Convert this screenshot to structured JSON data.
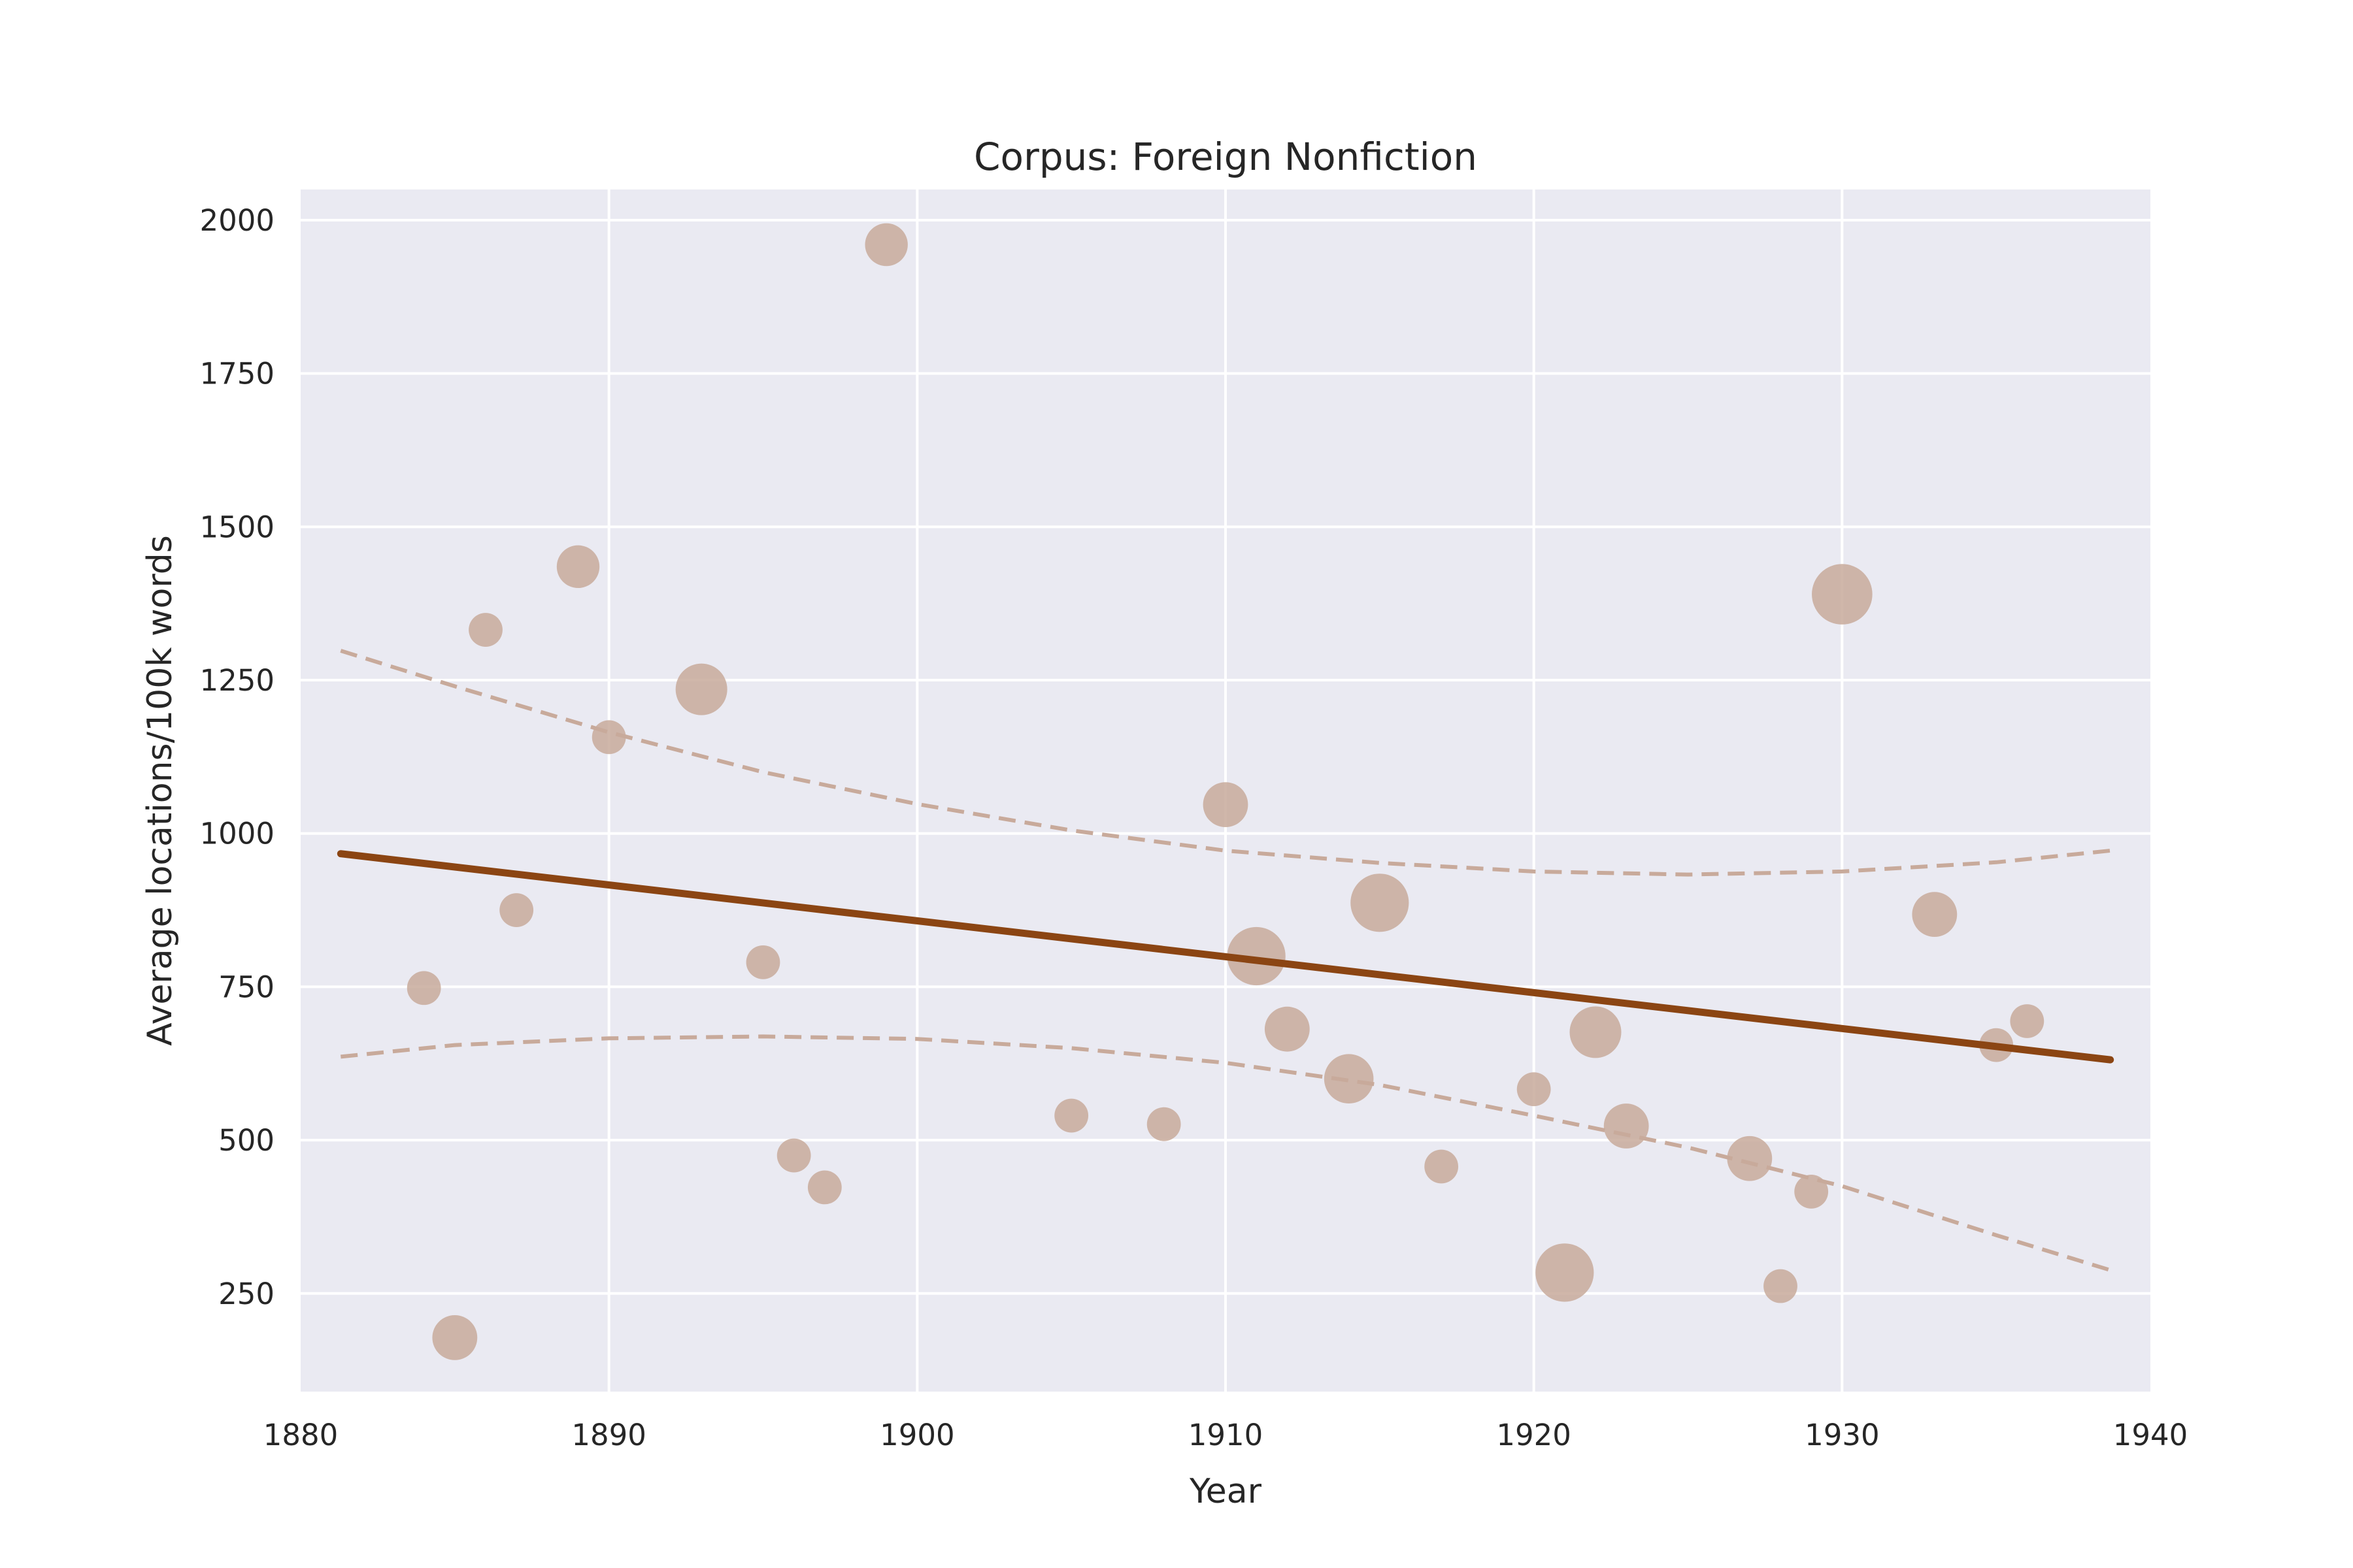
{
  "chart_data": {
    "type": "scatter",
    "title": "Corpus: Foreign Nonfiction",
    "xlabel": "Year",
    "ylabel": "Average locations/100k words",
    "xlim": [
      1880,
      1940
    ],
    "ylim": [
      90,
      2050
    ],
    "xticks": [
      1880,
      1890,
      1900,
      1910,
      1920,
      1930,
      1940
    ],
    "yticks": [
      250,
      500,
      750,
      1000,
      1250,
      1500,
      1750,
      2000
    ],
    "grid": true,
    "legend": "none",
    "colors": {
      "background": "#eaeaf2",
      "grid": "#ffffff",
      "points": "#c8aa9b",
      "trend": "#8b4513",
      "band": "#c8aa9b"
    },
    "points": [
      {
        "x": 1884,
        "y": 748,
        "size": 0.35
      },
      {
        "x": 1885,
        "y": 178,
        "size": 0.6
      },
      {
        "x": 1886,
        "y": 1332,
        "size": 0.35
      },
      {
        "x": 1887,
        "y": 875,
        "size": 0.35
      },
      {
        "x": 1889,
        "y": 1435,
        "size": 0.55
      },
      {
        "x": 1890,
        "y": 1157,
        "size": 0.35
      },
      {
        "x": 1893,
        "y": 1235,
        "size": 0.75
      },
      {
        "x": 1895,
        "y": 790,
        "size": 0.35
      },
      {
        "x": 1896,
        "y": 475,
        "size": 0.35
      },
      {
        "x": 1897,
        "y": 423,
        "size": 0.35
      },
      {
        "x": 1899,
        "y": 1960,
        "size": 0.55
      },
      {
        "x": 1905,
        "y": 540,
        "size": 0.35
      },
      {
        "x": 1908,
        "y": 526,
        "size": 0.35
      },
      {
        "x": 1910,
        "y": 1047,
        "size": 0.6
      },
      {
        "x": 1911,
        "y": 800,
        "size": 0.9
      },
      {
        "x": 1912,
        "y": 681,
        "size": 0.6
      },
      {
        "x": 1914,
        "y": 600,
        "size": 0.7
      },
      {
        "x": 1915,
        "y": 887,
        "size": 0.9
      },
      {
        "x": 1917,
        "y": 457,
        "size": 0.35
      },
      {
        "x": 1920,
        "y": 583,
        "size": 0.35
      },
      {
        "x": 1921,
        "y": 284,
        "size": 0.9
      },
      {
        "x": 1922,
        "y": 676,
        "size": 0.75
      },
      {
        "x": 1923,
        "y": 523,
        "size": 0.6
      },
      {
        "x": 1927,
        "y": 470,
        "size": 0.6
      },
      {
        "x": 1928,
        "y": 262,
        "size": 0.35
      },
      {
        "x": 1929,
        "y": 416,
        "size": 0.35
      },
      {
        "x": 1930,
        "y": 1390,
        "size": 0.95
      },
      {
        "x": 1933,
        "y": 868,
        "size": 0.6
      },
      {
        "x": 1935,
        "y": 655,
        "size": 0.35
      },
      {
        "x": 1936,
        "y": 694,
        "size": 0.35
      }
    ],
    "trend_line": {
      "x": [
        1881.3,
        1938.7
      ],
      "y": [
        967,
        631
      ]
    },
    "upper_band": {
      "x": [
        1881.3,
        1885,
        1890,
        1895,
        1900,
        1905,
        1910,
        1915,
        1920,
        1925,
        1930,
        1935,
        1938.7
      ],
      "y": [
        1298,
        1240,
        1165,
        1100,
        1048,
        1005,
        972,
        952,
        938,
        933,
        938,
        953,
        972
      ]
    },
    "lower_band": {
      "x": [
        1881.3,
        1885,
        1890,
        1895,
        1900,
        1905,
        1910,
        1915,
        1920,
        1925,
        1930,
        1935,
        1938.7
      ],
      "y": [
        636,
        655,
        666,
        669,
        665,
        650,
        626,
        590,
        540,
        488,
        425,
        345,
        288
      ]
    }
  }
}
